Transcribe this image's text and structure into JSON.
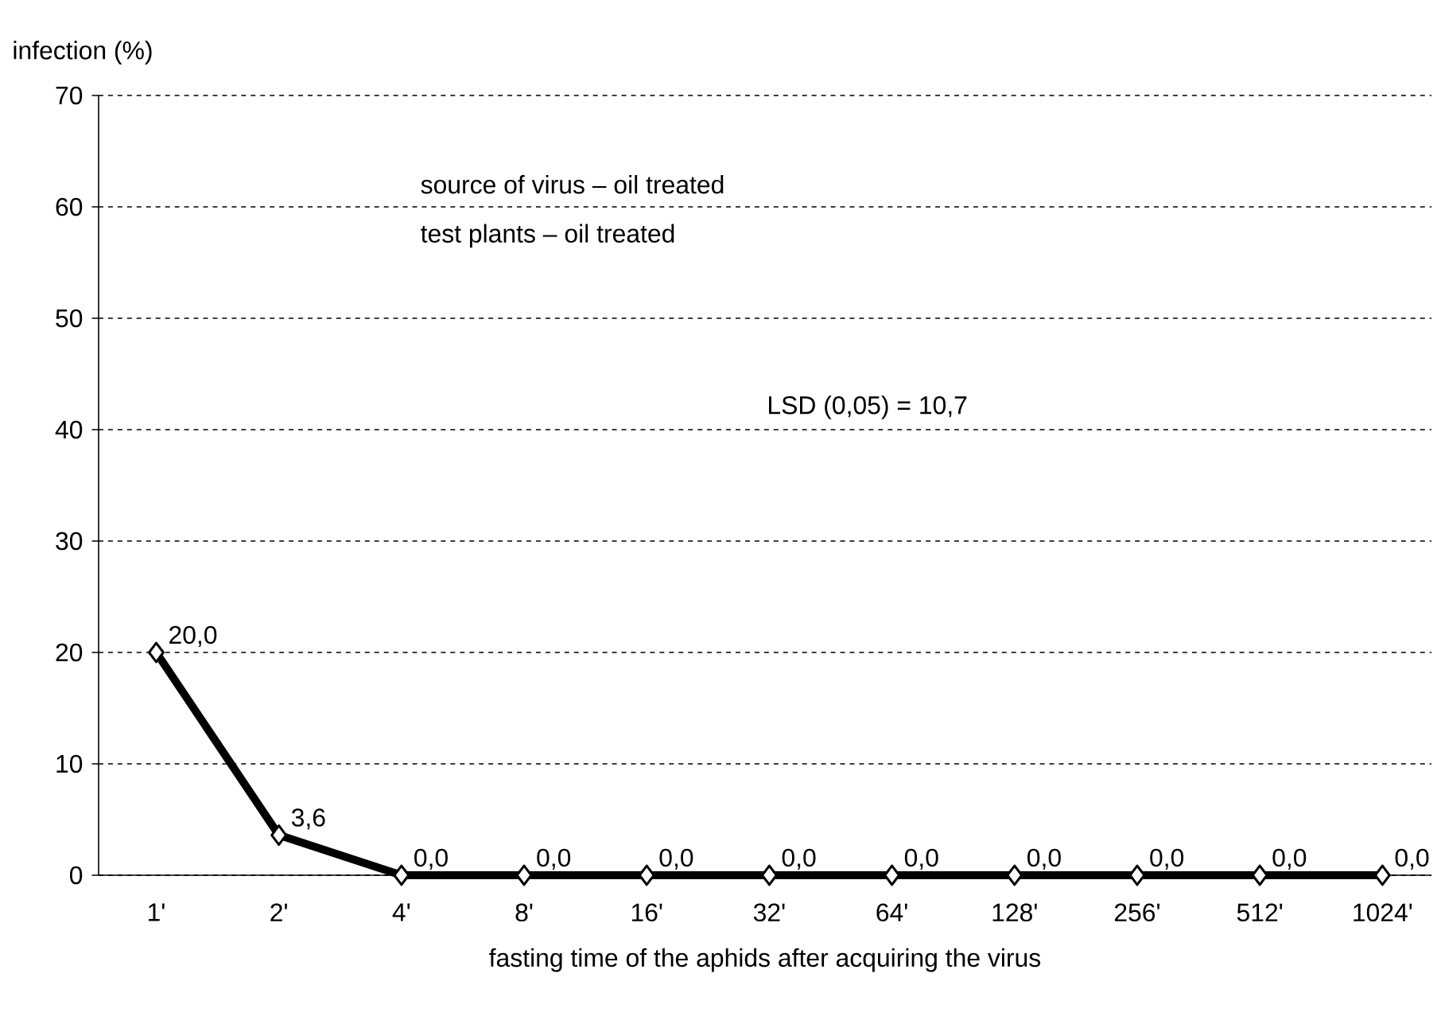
{
  "chart_data": {
    "type": "line",
    "ylabel": "infection (%)",
    "xlabel": "fasting time of the aphids after acquiring the virus",
    "categories": [
      "1'",
      "2'",
      "4'",
      "8'",
      "16'",
      "32'",
      "64'",
      "128'",
      "256'",
      "512'",
      "1024'"
    ],
    "values": [
      20.0,
      3.6,
      0,
      0,
      0,
      0,
      0,
      0,
      0,
      0,
      0
    ],
    "value_labels": [
      "20,0",
      "3,6",
      "0,0",
      "0,0",
      "0,0",
      "0,0",
      "0,0",
      "0,0",
      "0,0",
      "0,0",
      "0,0"
    ],
    "color": "#000000",
    "ylim": [
      0,
      70
    ],
    "yticks": [
      0,
      10,
      20,
      30,
      40,
      50,
      60,
      70
    ],
    "grid": "y",
    "marker": "diamond",
    "line_style": "solid",
    "annotations": [
      "source of virus – oil treated",
      "test plants – oil treated",
      "LSD (0,05) = 10,7"
    ]
  }
}
